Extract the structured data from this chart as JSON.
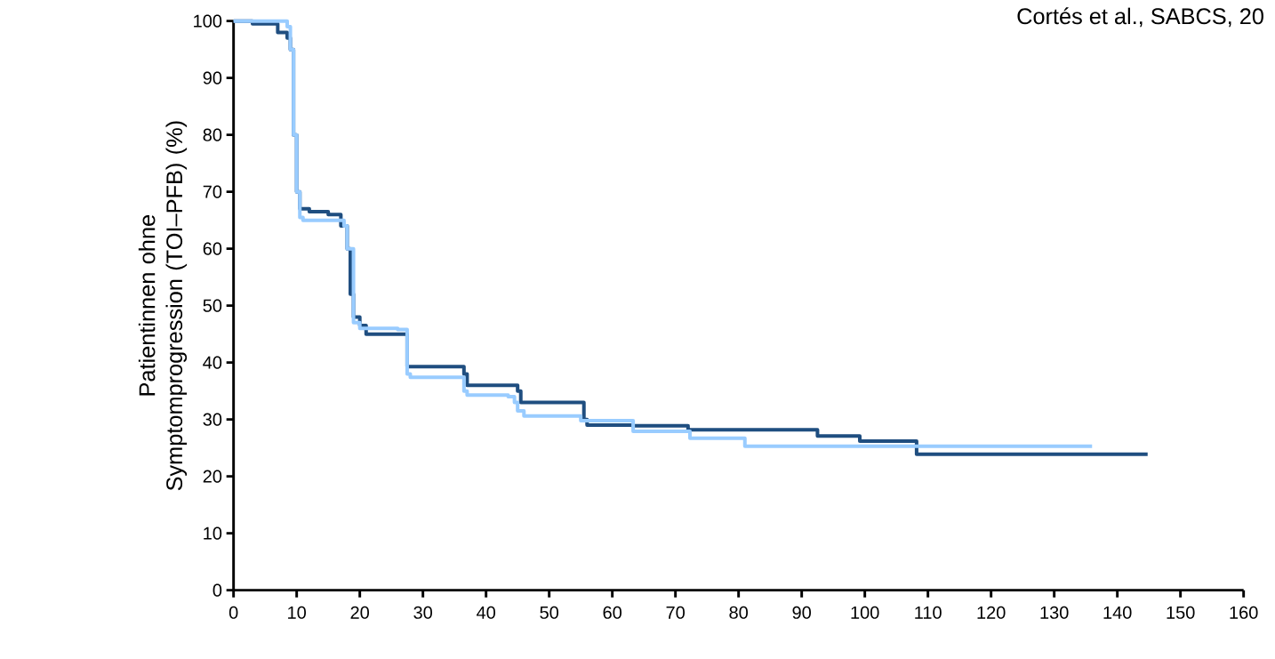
{
  "chart_data": {
    "type": "step",
    "ylabel": "Patientinnen ohne Symptomprogression (TOI–PFB) (%)",
    "annotations": [
      "Cortés et al., SABCS, 20"
    ],
    "xlim": [
      0,
      160
    ],
    "xticks": [
      0,
      10,
      20,
      30,
      40,
      50,
      60,
      70,
      80,
      90,
      100,
      110,
      120,
      130,
      140,
      150,
      160
    ],
    "ylim": [
      0,
      100
    ],
    "yticks": [
      0,
      10,
      20,
      30,
      40,
      50,
      60,
      70,
      80,
      90,
      100
    ],
    "series": [
      {
        "color": "#1f4e80",
        "x": [
          0,
          3,
          7,
          8.5,
          9,
          9.5,
          10,
          10.5,
          12,
          15,
          17,
          18,
          18.5,
          19,
          20,
          21,
          27,
          27.5,
          36.5,
          37,
          44,
          45,
          45.5,
          55,
          55.5,
          56,
          63.2,
          72,
          92.5,
          99.2,
          108,
          108.2,
          144.8
        ],
        "values": [
          100,
          99.5,
          98,
          97,
          95,
          80,
          70,
          67,
          66.5,
          66,
          64,
          60,
          52,
          48,
          46.5,
          45,
          45,
          39.3,
          38,
          36,
          36,
          35,
          33,
          33,
          30,
          29,
          28.9,
          28.2,
          27.1,
          26.2,
          26.2,
          23.9,
          23.9
        ]
      },
      {
        "color": "#99ccff",
        "x": [
          0,
          8,
          8.5,
          9,
          9.5,
          10,
          10.5,
          11,
          17.5,
          18,
          19,
          20,
          26,
          27.5,
          28,
          36,
          36.5,
          37,
          42,
          43.5,
          44.5,
          45,
          46,
          54.5,
          55,
          63.3,
          72.3,
          81,
          136
        ],
        "values": [
          100,
          100,
          99,
          95,
          80,
          70,
          65.5,
          65,
          64,
          60,
          47,
          46,
          45.8,
          38,
          37.4,
          37.4,
          35,
          34.3,
          34.3,
          34,
          33,
          31.5,
          30.6,
          30.6,
          29.8,
          27.9,
          26.7,
          25.3,
          25.3
        ]
      }
    ]
  }
}
